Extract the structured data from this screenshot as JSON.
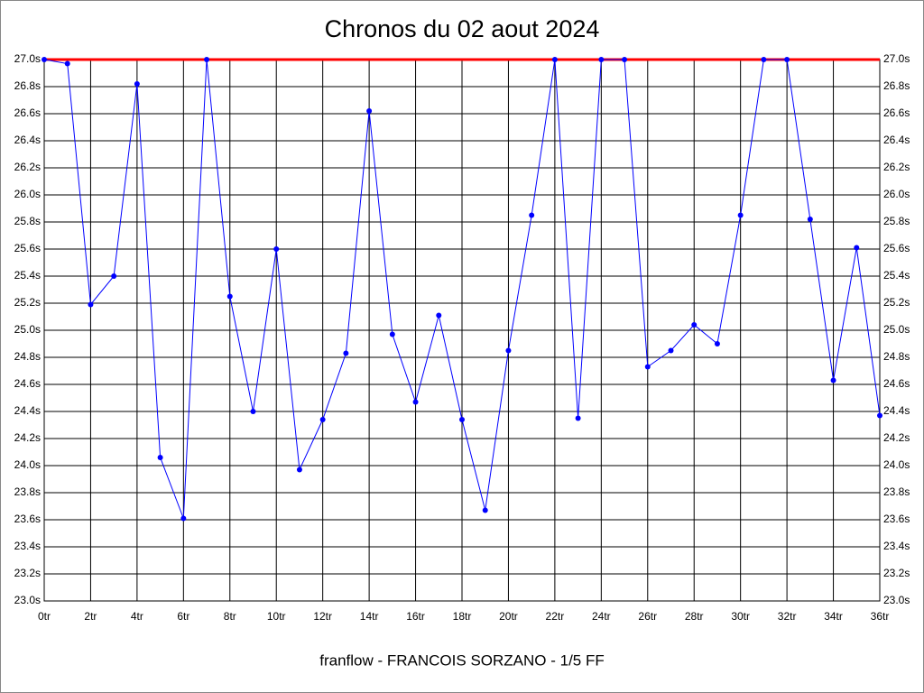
{
  "chart_data": {
    "type": "line",
    "title": "Chronos du 02 aout 2024",
    "xlabel": "franflow - FRANCOIS SORZANO - 1/5 FF",
    "x": [
      0,
      1,
      2,
      3,
      4,
      5,
      6,
      7,
      8,
      9,
      10,
      11,
      12,
      13,
      14,
      15,
      16,
      17,
      18,
      19,
      20,
      21,
      22,
      23,
      24,
      25,
      26,
      27,
      28,
      29,
      30,
      31,
      32,
      33,
      34,
      35,
      36
    ],
    "series": [
      {
        "name": "Chronos",
        "color": "#0000ff",
        "values": [
          27.0,
          26.97,
          25.19,
          25.4,
          26.82,
          24.06,
          23.61,
          27.0,
          25.25,
          24.4,
          25.6,
          23.97,
          24.34,
          24.83,
          26.62,
          24.97,
          24.47,
          25.11,
          24.34,
          23.67,
          24.85,
          25.85,
          27.0,
          24.35,
          27.0,
          27.0,
          24.73,
          24.85,
          25.04,
          24.9,
          25.85,
          27.0,
          27.0,
          25.82,
          24.63,
          25.61,
          24.37
        ]
      }
    ],
    "reference_line": {
      "value": 27.0,
      "color": "#ff0000"
    },
    "xlim": [
      0,
      36
    ],
    "ylim": [
      23.0,
      27.0
    ],
    "grid": true,
    "xticks": [
      {
        "value": 0,
        "label": "0tr"
      },
      {
        "value": 2,
        "label": "2tr"
      },
      {
        "value": 4,
        "label": "4tr"
      },
      {
        "value": 6,
        "label": "6tr"
      },
      {
        "value": 8,
        "label": "8tr"
      },
      {
        "value": 10,
        "label": "10tr"
      },
      {
        "value": 12,
        "label": "12tr"
      },
      {
        "value": 14,
        "label": "14tr"
      },
      {
        "value": 16,
        "label": "16tr"
      },
      {
        "value": 18,
        "label": "18tr"
      },
      {
        "value": 20,
        "label": "20tr"
      },
      {
        "value": 22,
        "label": "22tr"
      },
      {
        "value": 24,
        "label": "24tr"
      },
      {
        "value": 26,
        "label": "26tr"
      },
      {
        "value": 28,
        "label": "28tr"
      },
      {
        "value": 30,
        "label": "30tr"
      },
      {
        "value": 32,
        "label": "32tr"
      },
      {
        "value": 34,
        "label": "34tr"
      },
      {
        "value": 36,
        "label": "36tr"
      }
    ],
    "yticks": [
      {
        "value": 23.0,
        "label": "23.0s"
      },
      {
        "value": 23.2,
        "label": "23.2s"
      },
      {
        "value": 23.4,
        "label": "23.4s"
      },
      {
        "value": 23.6,
        "label": "23.6s"
      },
      {
        "value": 23.8,
        "label": "23.8s"
      },
      {
        "value": 24.0,
        "label": "24.0s"
      },
      {
        "value": 24.2,
        "label": "24.2s"
      },
      {
        "value": 24.4,
        "label": "24.4s"
      },
      {
        "value": 24.6,
        "label": "24.6s"
      },
      {
        "value": 24.8,
        "label": "24.8s"
      },
      {
        "value": 25.0,
        "label": "25.0s"
      },
      {
        "value": 25.2,
        "label": "25.2s"
      },
      {
        "value": 25.4,
        "label": "25.4s"
      },
      {
        "value": 25.6,
        "label": "25.6s"
      },
      {
        "value": 25.8,
        "label": "25.8s"
      },
      {
        "value": 26.0,
        "label": "26.0s"
      },
      {
        "value": 26.2,
        "label": "26.2s"
      },
      {
        "value": 26.4,
        "label": "26.4s"
      },
      {
        "value": 26.6,
        "label": "26.6s"
      },
      {
        "value": 26.8,
        "label": "26.8s"
      },
      {
        "value": 27.0,
        "label": "27.0s"
      }
    ]
  }
}
